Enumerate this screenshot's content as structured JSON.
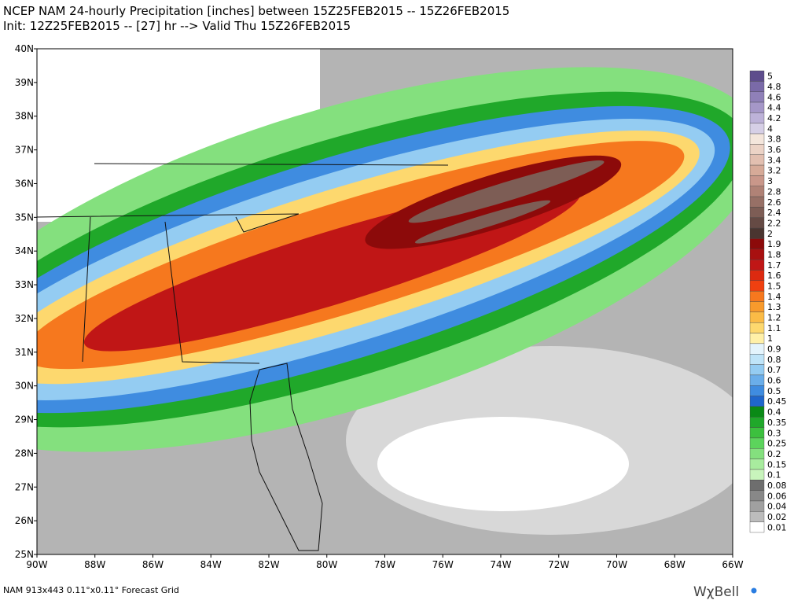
{
  "header": {
    "title": "NCEP NAM 24-hourly Precipitation [inches] between 15Z25FEB2015 -- 15Z26FEB2015",
    "subtitle": "Init: 12Z25FEB2015 -- [27] hr --> Valid Thu 15Z26FEB2015"
  },
  "map": {
    "lat_labels": [
      "40N",
      "39N",
      "38N",
      "37N",
      "36N",
      "35N",
      "34N",
      "33N",
      "32N",
      "31N",
      "30N",
      "29N",
      "28N",
      "27N",
      "26N",
      "25N"
    ],
    "lon_labels": [
      "90W",
      "88W",
      "86W",
      "84W",
      "82W",
      "80W",
      "78W",
      "76W",
      "74W",
      "72W",
      "70W",
      "68W",
      "66W"
    ]
  },
  "legend": {
    "levels": [
      5,
      4.8,
      4.6,
      4.4,
      4.2,
      4,
      3.8,
      3.6,
      3.4,
      3.2,
      3,
      2.8,
      2.6,
      2.4,
      2.2,
      2,
      1.9,
      1.8,
      1.7,
      1.6,
      1.5,
      1.4,
      1.3,
      1.2,
      1.1,
      1,
      0.9,
      0.8,
      0.7,
      0.6,
      0.5,
      0.45,
      0.4,
      0.35,
      0.3,
      0.25,
      0.2,
      0.15,
      0.1,
      0.08,
      0.06,
      0.04,
      0.02,
      0.01
    ],
    "colors": [
      "#5e4d8c",
      "#7a6aa8",
      "#8f80b8",
      "#a597c8",
      "#bdb2d8",
      "#d6cfe6",
      "#f4e6dc",
      "#ecd3c6",
      "#e2bfb0",
      "#d6aa98",
      "#c9978a",
      "#b08276",
      "#977066",
      "#7d5d55",
      "#654a44",
      "#4a3530",
      "#8c0a0a",
      "#a81010",
      "#c01616",
      "#dc2a10",
      "#f04010",
      "#f6781e",
      "#f89a2c",
      "#fbbb46",
      "#fdd86e",
      "#fff0a8",
      "#e4f4fc",
      "#bfe4f8",
      "#94ccf2",
      "#6aaeea",
      "#3f8ce0",
      "#1f66cc",
      "#0a8a16",
      "#20a82a",
      "#3cc03e",
      "#5cd45c",
      "#84e07e",
      "#a8ec9e",
      "#c8f4bc",
      "#6e6e6e",
      "#888888",
      "#a0a0a0",
      "#bcbcbc",
      "#ffffff"
    ]
  },
  "footer": {
    "grid": "NAM 913x443 0.11°x0.11° Forecast Grid",
    "logo": "WχBell"
  }
}
